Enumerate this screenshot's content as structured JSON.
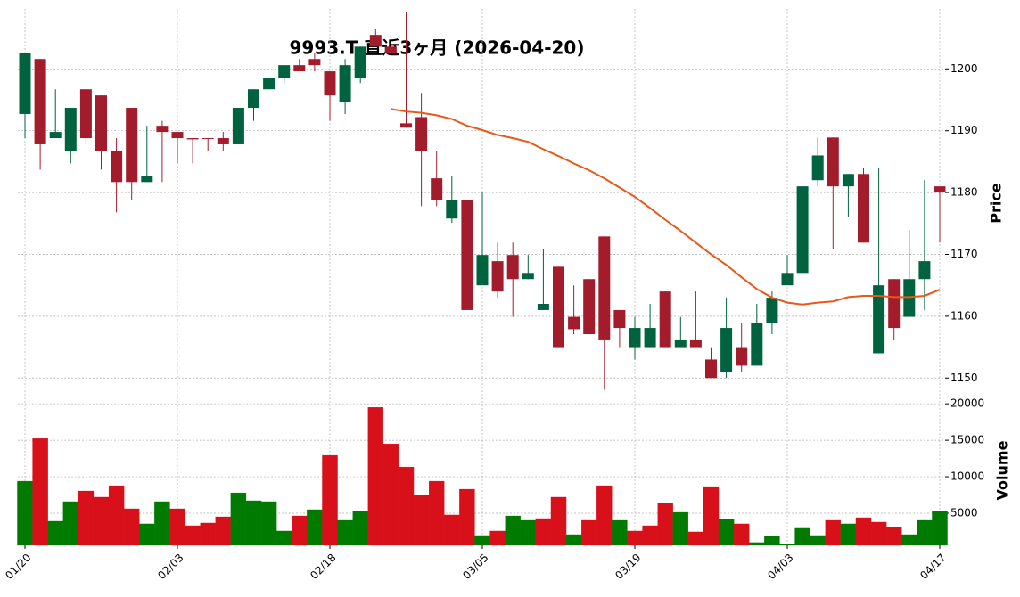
{
  "chart_data": {
    "type": "candlestick",
    "title": "9993.T 直近3ヶ月 (2026-04-20)",
    "categories": [
      "01/20",
      null,
      null,
      null,
      null,
      null,
      null,
      null,
      null,
      null,
      "02/03",
      null,
      null,
      null,
      null,
      null,
      null,
      null,
      null,
      null,
      "02/18",
      null,
      null,
      null,
      null,
      null,
      null,
      null,
      null,
      null,
      "03/05",
      null,
      null,
      null,
      null,
      null,
      null,
      null,
      null,
      null,
      "03/19",
      null,
      null,
      null,
      null,
      null,
      null,
      null,
      null,
      null,
      "04/03",
      null,
      null,
      null,
      null,
      null,
      null,
      null,
      null,
      null,
      "04/17"
    ],
    "open": [
      1192.7,
      1201.6,
      1188.8,
      1186.7,
      1196.7,
      1195.7,
      1186.7,
      1193.7,
      1181.7,
      1190.8,
      1189.8,
      1188.8,
      1188.8,
      1188.8,
      1187.8,
      1193.7,
      1196.7,
      1198.6,
      1200.6,
      1201.6,
      1199.6,
      1194.7,
      1198.6,
      1205.5,
      1203.6,
      1191.2,
      1192.2,
      1182.3,
      1175.8,
      1178.8,
      1165.0,
      1168.9,
      1169.9,
      1166.0,
      1161.0,
      1168.0,
      1159.9,
      1166.0,
      1172.9,
      1161.0,
      1155.0,
      1155.0,
      1164.0,
      1155.0,
      1156.1,
      1153.0,
      1151.0,
      1155.0,
      1152.0,
      1158.9,
      1165.0,
      1167.0,
      1182.0,
      1188.9,
      1181.0,
      1183.0,
      1154.0,
      1166.0,
      1159.9,
      1166.0,
      1181.0
    ],
    "high": [
      1202.6,
      1201.6,
      1196.7,
      1193.7,
      1196.7,
      1195.7,
      1188.8,
      1193.7,
      1190.8,
      1191.6,
      1189.8,
      1188.8,
      1188.8,
      1189.8,
      1193.7,
      1196.7,
      1198.6,
      1200.6,
      1201.6,
      1202.6,
      1199.6,
      1201.6,
      1203.6,
      1206.5,
      1205.5,
      1209.1,
      1196.1,
      1186.7,
      1182.7,
      1178.8,
      1180.0,
      1171.9,
      1171.9,
      1169.9,
      1170.9,
      1168.0,
      1165.0,
      1166.0,
      1172.9,
      1161.0,
      1159.9,
      1162.0,
      1164.0,
      1159.9,
      1164.0,
      1155.0,
      1163.0,
      1158.9,
      1162.0,
      1164.0,
      1169.9,
      1181.0,
      1188.9,
      1188.9,
      1183.0,
      1184.0,
      1184.0,
      1166.0,
      1173.9,
      1182.0,
      1181.0
    ],
    "low": [
      1188.8,
      1183.7,
      1188.8,
      1184.7,
      1187.8,
      1183.7,
      1176.8,
      1178.8,
      1181.7,
      1181.7,
      1184.7,
      1184.7,
      1186.7,
      1186.7,
      1187.8,
      1191.6,
      1196.7,
      1197.7,
      1199.6,
      1199.6,
      1191.6,
      1192.7,
      1197.7,
      1203.6,
      1202.6,
      1190.5,
      1177.8,
      1177.8,
      1175.1,
      1161.0,
      1165.0,
      1163.0,
      1159.9,
      1166.0,
      1161.0,
      1155.0,
      1157.1,
      1157.1,
      1148.1,
      1155.0,
      1153.0,
      1155.0,
      1155.0,
      1155.0,
      1155.0,
      1150.0,
      1150.0,
      1151.0,
      1152.0,
      1157.1,
      1165.0,
      1167.0,
      1181.0,
      1170.9,
      1176.1,
      1171.9,
      1154.0,
      1156.1,
      1159.9,
      1161.0,
      1171.9
    ],
    "close": [
      1202.6,
      1187.8,
      1189.8,
      1193.7,
      1188.8,
      1186.7,
      1181.7,
      1181.7,
      1182.7,
      1189.8,
      1188.8,
      1188.6,
      1188.7,
      1187.8,
      1193.7,
      1196.7,
      1198.6,
      1200.6,
      1199.6,
      1200.6,
      1195.7,
      1200.6,
      1203.6,
      1203.6,
      1202.6,
      1190.5,
      1186.7,
      1178.8,
      1178.8,
      1161.0,
      1169.9,
      1164.0,
      1166.0,
      1167.0,
      1162.0,
      1155.0,
      1157.9,
      1157.1,
      1156.1,
      1158.1,
      1158.1,
      1158.1,
      1155.0,
      1156.1,
      1155.0,
      1150.0,
      1158.1,
      1152.0,
      1158.9,
      1163.0,
      1167.0,
      1181.0,
      1186.0,
      1181.0,
      1183.0,
      1171.9,
      1165.0,
      1158.1,
      1166.0,
      1168.9,
      1180.0
    ],
    "up_color": "#006340",
    "down_color": "#a31c2b",
    "moving_average": {
      "color": "#e8581a",
      "values": [
        null,
        null,
        null,
        null,
        null,
        null,
        null,
        null,
        null,
        null,
        null,
        null,
        null,
        null,
        null,
        null,
        null,
        null,
        null,
        null,
        null,
        null,
        null,
        null,
        1193.5,
        1193.1,
        1192.9,
        1192.5,
        1191.9,
        1190.8,
        1190.1,
        1189.3,
        1188.8,
        1188.2,
        1187.0,
        1185.9,
        1184.7,
        1183.6,
        1182.3,
        1180.8,
        1179.3,
        1177.5,
        1175.6,
        1173.8,
        1171.9,
        1170.0,
        1168.3,
        1166.3,
        1164.4,
        1163.0,
        1162.2,
        1161.9,
        1162.2,
        1162.4,
        1163.1,
        1163.3,
        1163.3,
        1163.1,
        1163.1,
        1163.3,
        1164.3
      ]
    },
    "ylim": [
      1147.3,
      1209.7
    ],
    "yticks": [
      1150,
      1160,
      1170,
      1180,
      1190,
      1200
    ],
    "ylabel": "Price",
    "grid": true,
    "volume": {
      "ylabel": "Volume",
      "ylim": [
        600,
        21000
      ],
      "yticks": [
        5000,
        10000,
        15000,
        20000
      ],
      "values": [
        9390,
        15240,
        3900,
        6590,
        8050,
        7200,
        8780,
        5610,
        3540,
        6590,
        5610,
        3290,
        3660,
        4510,
        7800,
        6710,
        6590,
        2560,
        4630,
        5490,
        12930,
        4020,
        5240,
        19510,
        14510,
        11340,
        7440,
        9390,
        4760,
        8290,
        1950,
        2560,
        4630,
        4020,
        4270,
        7200,
        2070,
        4020,
        8780,
        4020,
        2560,
        3290,
        6340,
        5120,
        2440,
        8660,
        4150,
        3540,
        980,
        1830,
        730,
        2930,
        1950,
        4020,
        3540,
        4390,
        3780,
        3050,
        2070,
        4020,
        5240
      ],
      "colors": [
        "#007a00",
        "#d7101a",
        "#007a00",
        "#007a00",
        "#d7101a",
        "#d7101a",
        "#d7101a",
        "#d7101a",
        "#007a00",
        "#007a00",
        "#d7101a",
        "#d7101a",
        "#d7101a",
        "#d7101a",
        "#007a00",
        "#007a00",
        "#007a00",
        "#007a00",
        "#d7101a",
        "#007a00",
        "#d7101a",
        "#007a00",
        "#007a00",
        "#d7101a",
        "#d7101a",
        "#d7101a",
        "#d7101a",
        "#d7101a",
        "#d7101a",
        "#d7101a",
        "#007a00",
        "#d7101a",
        "#007a00",
        "#007a00",
        "#d7101a",
        "#d7101a",
        "#007a00",
        "#d7101a",
        "#d7101a",
        "#007a00",
        "#d7101a",
        "#d7101a",
        "#d7101a",
        "#007a00",
        "#d7101a",
        "#d7101a",
        "#007a00",
        "#d7101a",
        "#007a00",
        "#007a00",
        "#007a00",
        "#007a00",
        "#007a00",
        "#d7101a",
        "#007a00",
        "#d7101a",
        "#d7101a",
        "#d7101a",
        "#007a00",
        "#007a00",
        "#007a00"
      ]
    }
  }
}
